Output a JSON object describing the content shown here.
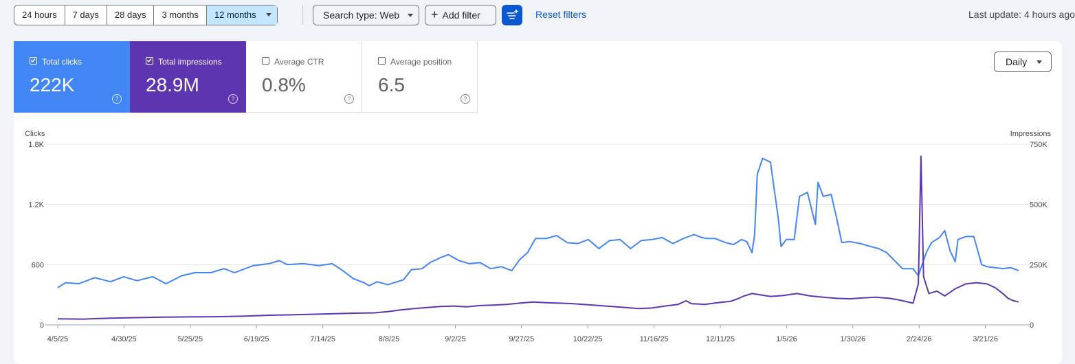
{
  "toolbar": {
    "ranges": [
      "24 hours",
      "7 days",
      "28 days",
      "3 months",
      "12 months"
    ],
    "active_range": "12 months",
    "search_type": "Search type: Web",
    "add_filter": "Add filter",
    "reset_filters": "Reset filters",
    "last_update": "Last update: 4 hours ago"
  },
  "metrics": [
    {
      "label": "Total clicks",
      "value": "222K",
      "checked": true,
      "color": "#4285f4"
    },
    {
      "label": "Total impressions",
      "value": "28.9M",
      "checked": true,
      "color": "#5e35b1"
    },
    {
      "label": "Average CTR",
      "value": "0.8%",
      "checked": false
    },
    {
      "label": "Average position",
      "value": "6.5",
      "checked": false
    }
  ],
  "granularity": "Daily",
  "chart_data": {
    "type": "line",
    "left_axis": {
      "title": "Clicks",
      "ticks": [
        "0",
        "600",
        "1.2K",
        "1.8K"
      ],
      "range": [
        0,
        1800
      ]
    },
    "right_axis": {
      "title": "Impressions",
      "ticks": [
        "0",
        "250K",
        "500K",
        "750K"
      ],
      "range": [
        0,
        750000
      ]
    },
    "x_ticks": [
      "4/5/25",
      "4/30/25",
      "5/25/25",
      "6/19/25",
      "7/14/25",
      "8/8/25",
      "9/2/25",
      "9/27/25",
      "10/22/25",
      "11/16/25",
      "12/11/25",
      "1/5/26",
      "1/30/26",
      "2/24/26",
      "3/21/26"
    ],
    "x_range_days": [
      0,
      364
    ],
    "series": [
      {
        "name": "Clicks",
        "axis": "left",
        "color": "#4285f4",
        "points": [
          [
            0,
            370
          ],
          [
            3,
            420
          ],
          [
            8,
            410
          ],
          [
            14,
            470
          ],
          [
            20,
            430
          ],
          [
            25,
            480
          ],
          [
            30,
            440
          ],
          [
            36,
            480
          ],
          [
            41,
            410
          ],
          [
            47,
            490
          ],
          [
            52,
            520
          ],
          [
            58,
            520
          ],
          [
            63,
            560
          ],
          [
            67,
            520
          ],
          [
            74,
            590
          ],
          [
            80,
            610
          ],
          [
            84,
            640
          ],
          [
            87,
            600
          ],
          [
            93,
            610
          ],
          [
            99,
            590
          ],
          [
            104,
            610
          ],
          [
            108,
            540
          ],
          [
            112,
            460
          ],
          [
            116,
            420
          ],
          [
            118,
            390
          ],
          [
            121,
            430
          ],
          [
            125,
            400
          ],
          [
            131,
            450
          ],
          [
            134,
            550
          ],
          [
            138,
            560
          ],
          [
            141,
            620
          ],
          [
            145,
            670
          ],
          [
            148,
            700
          ],
          [
            152,
            640
          ],
          [
            156,
            610
          ],
          [
            160,
            620
          ],
          [
            164,
            560
          ],
          [
            168,
            580
          ],
          [
            172,
            540
          ],
          [
            175,
            650
          ],
          [
            178,
            720
          ],
          [
            181,
            860
          ],
          [
            185,
            860
          ],
          [
            189,
            890
          ],
          [
            193,
            820
          ],
          [
            197,
            810
          ],
          [
            201,
            850
          ],
          [
            205,
            760
          ],
          [
            209,
            840
          ],
          [
            213,
            850
          ],
          [
            217,
            760
          ],
          [
            221,
            840
          ],
          [
            225,
            850
          ],
          [
            229,
            870
          ],
          [
            233,
            810
          ],
          [
            237,
            860
          ],
          [
            241,
            900
          ],
          [
            244,
            870
          ],
          [
            246,
            860
          ],
          [
            249,
            860
          ],
          [
            253,
            820
          ],
          [
            256,
            800
          ],
          [
            259,
            850
          ],
          [
            261,
            830
          ],
          [
            263,
            720
          ],
          [
            264,
            900
          ],
          [
            265,
            1500
          ],
          [
            267,
            1660
          ],
          [
            270,
            1620
          ],
          [
            273,
            1050
          ],
          [
            274,
            780
          ],
          [
            276,
            850
          ],
          [
            279,
            850
          ],
          [
            281,
            1280
          ],
          [
            284,
            1320
          ],
          [
            287,
            1000
          ],
          [
            288,
            1420
          ],
          [
            290,
            1280
          ],
          [
            293,
            1300
          ],
          [
            295,
            1070
          ],
          [
            297,
            820
          ],
          [
            300,
            830
          ],
          [
            304,
            810
          ],
          [
            308,
            780
          ],
          [
            311,
            760
          ],
          [
            314,
            720
          ],
          [
            317,
            640
          ],
          [
            320,
            560
          ],
          [
            324,
            560
          ],
          [
            326,
            490
          ],
          [
            329,
            720
          ],
          [
            331,
            820
          ],
          [
            334,
            870
          ],
          [
            336,
            940
          ],
          [
            338,
            740
          ],
          [
            340,
            630
          ],
          [
            341,
            850
          ],
          [
            344,
            880
          ],
          [
            347,
            880
          ],
          [
            350,
            600
          ],
          [
            352,
            580
          ],
          [
            355,
            570
          ],
          [
            358,
            560
          ],
          [
            361,
            570
          ],
          [
            364,
            540
          ]
        ]
      },
      {
        "name": "Impressions",
        "axis": "right",
        "color": "#5e35b1",
        "points": [
          [
            0,
            25000
          ],
          [
            10,
            24000
          ],
          [
            20,
            28000
          ],
          [
            30,
            30000
          ],
          [
            40,
            32000
          ],
          [
            50,
            33000
          ],
          [
            60,
            34000
          ],
          [
            70,
            36000
          ],
          [
            80,
            40000
          ],
          [
            90,
            42000
          ],
          [
            100,
            45000
          ],
          [
            110,
            48000
          ],
          [
            120,
            50000
          ],
          [
            125,
            55000
          ],
          [
            130,
            62000
          ],
          [
            135,
            68000
          ],
          [
            140,
            72000
          ],
          [
            145,
            76000
          ],
          [
            150,
            78000
          ],
          [
            155,
            75000
          ],
          [
            160,
            80000
          ],
          [
            165,
            82000
          ],
          [
            170,
            85000
          ],
          [
            175,
            90000
          ],
          [
            180,
            95000
          ],
          [
            185,
            92000
          ],
          [
            190,
            90000
          ],
          [
            195,
            88000
          ],
          [
            200,
            84000
          ],
          [
            205,
            80000
          ],
          [
            210,
            76000
          ],
          [
            215,
            72000
          ],
          [
            220,
            68000
          ],
          [
            225,
            70000
          ],
          [
            230,
            78000
          ],
          [
            235,
            85000
          ],
          [
            238,
            100000
          ],
          [
            240,
            88000
          ],
          [
            245,
            85000
          ],
          [
            250,
            92000
          ],
          [
            255,
            98000
          ],
          [
            258,
            110000
          ],
          [
            260,
            120000
          ],
          [
            263,
            130000
          ],
          [
            266,
            125000
          ],
          [
            270,
            118000
          ],
          [
            275,
            122000
          ],
          [
            280,
            130000
          ],
          [
            285,
            120000
          ],
          [
            290,
            115000
          ],
          [
            295,
            110000
          ],
          [
            300,
            108000
          ],
          [
            305,
            112000
          ],
          [
            310,
            115000
          ],
          [
            315,
            110000
          ],
          [
            318,
            105000
          ],
          [
            320,
            100000
          ],
          [
            322,
            95000
          ],
          [
            324,
            90000
          ],
          [
            326,
            170000
          ],
          [
            327,
            700000
          ],
          [
            328,
            200000
          ],
          [
            330,
            130000
          ],
          [
            333,
            140000
          ],
          [
            336,
            120000
          ],
          [
            340,
            150000
          ],
          [
            344,
            170000
          ],
          [
            348,
            175000
          ],
          [
            352,
            170000
          ],
          [
            355,
            155000
          ],
          [
            358,
            130000
          ],
          [
            360,
            110000
          ],
          [
            362,
            100000
          ],
          [
            364,
            95000
          ]
        ]
      }
    ]
  }
}
